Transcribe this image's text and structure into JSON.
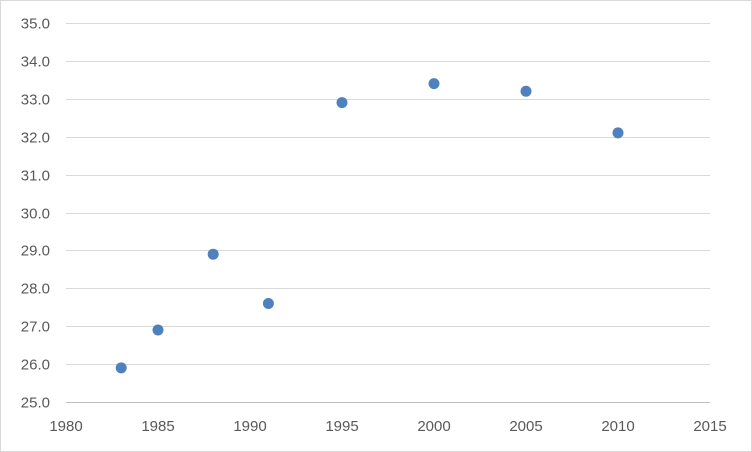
{
  "chart_data": {
    "type": "scatter",
    "title": "",
    "xlabel": "",
    "ylabel": "",
    "xlim": [
      1980,
      2015
    ],
    "ylim": [
      25.0,
      35.0
    ],
    "x_ticks": [
      1980,
      1985,
      1990,
      1995,
      2000,
      2005,
      2010,
      2015
    ],
    "x_tick_labels": [
      "1980",
      "1985",
      "1990",
      "1995",
      "2000",
      "2005",
      "2010",
      "2015"
    ],
    "y_ticks": [
      25.0,
      26.0,
      27.0,
      28.0,
      29.0,
      30.0,
      31.0,
      32.0,
      33.0,
      34.0,
      35.0
    ],
    "y_tick_labels": [
      "25.0",
      "26.0",
      "27.0",
      "28.0",
      "29.0",
      "30.0",
      "31.0",
      "32.0",
      "33.0",
      "34.0",
      "35.0"
    ],
    "grid": "horizontal",
    "legend": "none",
    "series": [
      {
        "color": "#4f81bd",
        "points": [
          {
            "x": 1983,
            "y": 25.9
          },
          {
            "x": 1985,
            "y": 26.9
          },
          {
            "x": 1988,
            "y": 28.9
          },
          {
            "x": 1991,
            "y": 27.6
          },
          {
            "x": 1995,
            "y": 32.9
          },
          {
            "x": 2000,
            "y": 33.4
          },
          {
            "x": 2005,
            "y": 33.2
          },
          {
            "x": 2010,
            "y": 32.1
          }
        ]
      }
    ]
  }
}
